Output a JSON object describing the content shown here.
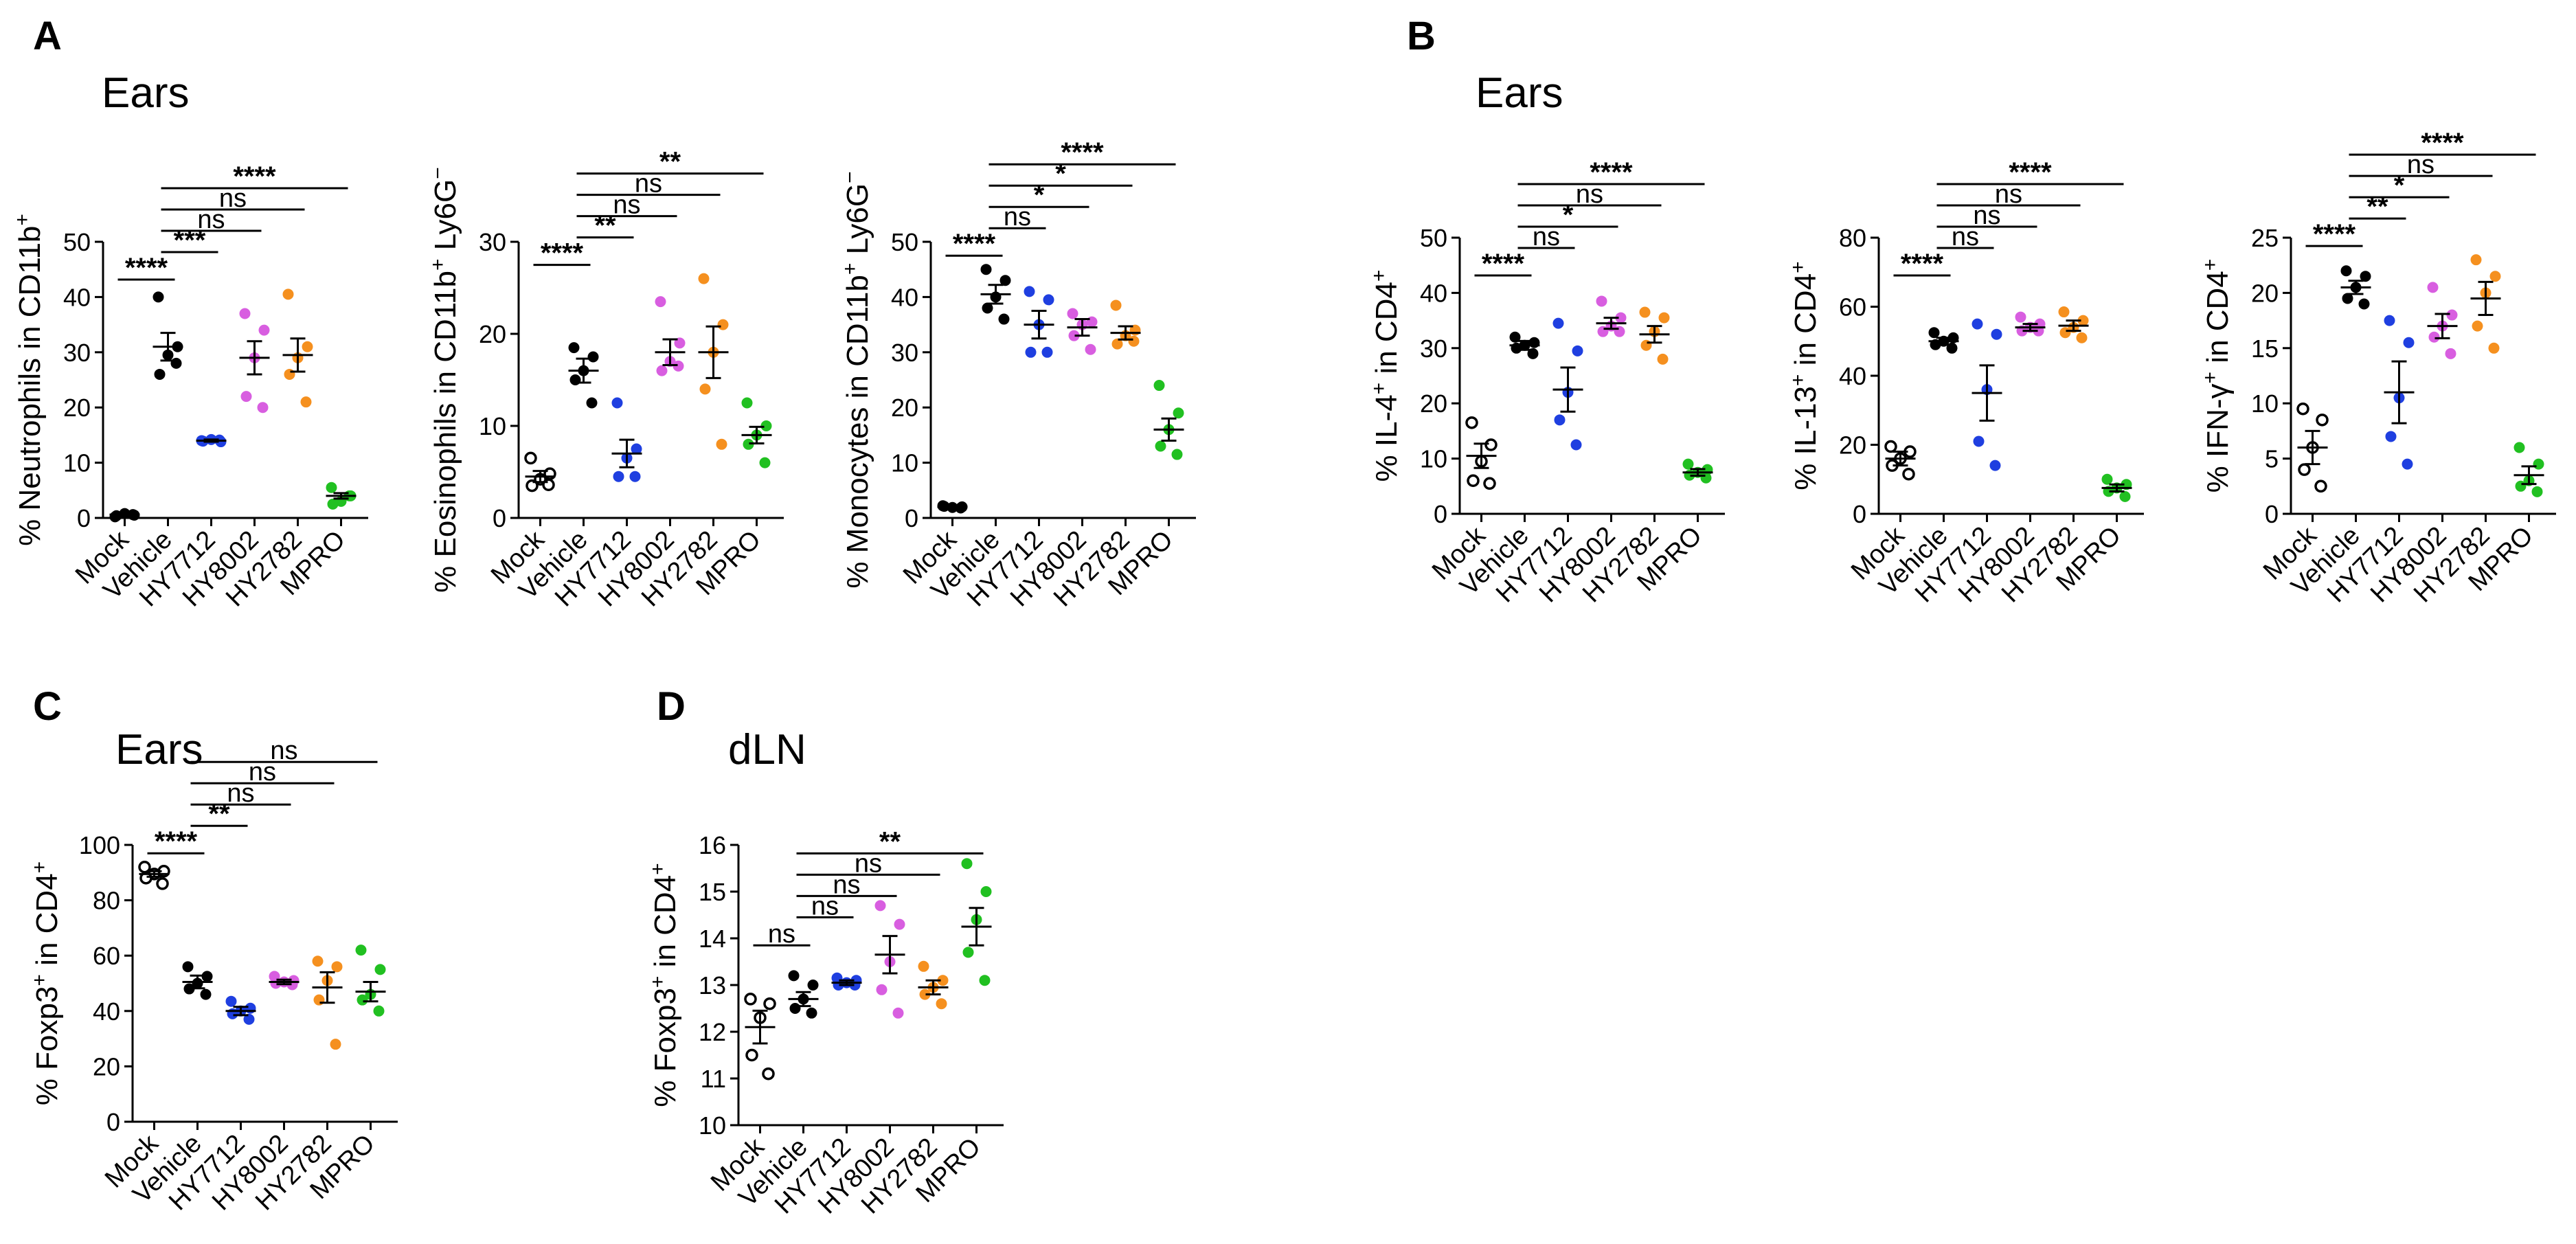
{
  "panels": [
    {
      "letter": "A",
      "title": "Ears"
    },
    {
      "letter": "B",
      "title": "Ears"
    },
    {
      "letter": "C",
      "title": "Ears"
    },
    {
      "letter": "D",
      "title": "dLN"
    }
  ],
  "groups": [
    "Mock",
    "Vehicle",
    "HY7712",
    "HY8002",
    "HY2782",
    "MPRO"
  ],
  "group_colors": {
    "Mock": "#000000",
    "Vehicle": "#000000",
    "HY7712": "#1f3fe0",
    "HY8002": "#d85ee0",
    "HY2782": "#f5901f",
    "MPRO": "#21c021"
  },
  "chart_data": [
    {
      "id": "neutrophils",
      "type": "scatter",
      "panel": "A",
      "ylabel_parts": [
        "% Neutrophils in CD11b",
        "+",
        ""
      ],
      "ylim": [
        0,
        50
      ],
      "yticks": [
        0,
        10,
        20,
        30,
        40,
        50
      ],
      "groups": [
        {
          "name": "Mock",
          "open": false,
          "mean": 0.6,
          "sem": 0.2,
          "points": [
            0.2,
            0.5,
            0.8,
            0.4,
            0.6
          ]
        },
        {
          "name": "Vehicle",
          "open": false,
          "mean": 31,
          "sem": 2.5,
          "points": [
            40,
            31,
            29.5,
            26,
            28
          ]
        },
        {
          "name": "HY7712",
          "open": false,
          "mean": 14,
          "sem": 0.2,
          "points": [
            14,
            13.8,
            14.2,
            13.9,
            14.1
          ]
        },
        {
          "name": "HY8002",
          "open": false,
          "mean": 29,
          "sem": 3,
          "points": [
            37,
            34,
            29,
            22,
            20
          ]
        },
        {
          "name": "HY2782",
          "open": false,
          "mean": 29.5,
          "sem": 3,
          "points": [
            40.5,
            31,
            29,
            26,
            21
          ]
        },
        {
          "name": "MPRO",
          "open": false,
          "mean": 4,
          "sem": 0.5,
          "points": [
            5.5,
            4,
            3,
            2.5,
            4
          ]
        }
      ],
      "comparisons": [
        {
          "from": "Mock",
          "to": "Vehicle",
          "label": "****"
        },
        {
          "from": "Vehicle",
          "to": "HY7712",
          "label": "***"
        },
        {
          "from": "Vehicle",
          "to": "HY8002",
          "label": "ns"
        },
        {
          "from": "Vehicle",
          "to": "HY2782",
          "label": "ns"
        },
        {
          "from": "Vehicle",
          "to": "MPRO",
          "label": "****"
        }
      ]
    },
    {
      "id": "eosinophils",
      "type": "scatter",
      "panel": "A",
      "ylabel_parts": [
        "% Eosinophils in CD11b",
        "+",
        " Ly6G",
        "−"
      ],
      "ylim": [
        0,
        30
      ],
      "yticks": [
        0,
        10,
        20,
        30
      ],
      "groups": [
        {
          "name": "Mock",
          "open": true,
          "mean": 4.5,
          "sem": 0.6,
          "points": [
            6.5,
            4.8,
            4.2,
            3.5,
            3.6
          ]
        },
        {
          "name": "Vehicle",
          "open": false,
          "mean": 16,
          "sem": 1.3,
          "points": [
            18.5,
            17.5,
            16,
            15,
            12.5
          ]
        },
        {
          "name": "HY7712",
          "open": false,
          "mean": 7,
          "sem": 1.5,
          "points": [
            12.5,
            7.5,
            6.5,
            4.5,
            4.5
          ]
        },
        {
          "name": "HY8002",
          "open": false,
          "mean": 18,
          "sem": 1.4,
          "points": [
            23.5,
            19,
            17,
            16,
            16.5
          ]
        },
        {
          "name": "HY2782",
          "open": false,
          "mean": 18,
          "sem": 2.8,
          "points": [
            26,
            21,
            18,
            14,
            8
          ]
        },
        {
          "name": "MPRO",
          "open": false,
          "mean": 9,
          "sem": 0.9,
          "points": [
            12.5,
            10,
            9,
            8,
            6
          ]
        }
      ],
      "comparisons": [
        {
          "from": "Mock",
          "to": "Vehicle",
          "label": "****"
        },
        {
          "from": "Vehicle",
          "to": "HY7712",
          "label": "**"
        },
        {
          "from": "Vehicle",
          "to": "HY8002",
          "label": "ns"
        },
        {
          "from": "Vehicle",
          "to": "HY2782",
          "label": "ns"
        },
        {
          "from": "Vehicle",
          "to": "MPRO",
          "label": "**"
        }
      ]
    },
    {
      "id": "monocytes",
      "type": "scatter",
      "panel": "A",
      "ylabel_parts": [
        "% Monocytes in CD11b",
        "+",
        " Ly6G",
        "−"
      ],
      "ylim": [
        0,
        50
      ],
      "yticks": [
        0,
        10,
        20,
        30,
        40,
        50
      ],
      "groups": [
        {
          "name": "Mock",
          "open": false,
          "mean": 2,
          "sem": 0.2,
          "points": [
            2.2,
            2,
            1.9,
            2.1,
            1.8
          ]
        },
        {
          "name": "Vehicle",
          "open": false,
          "mean": 40.5,
          "sem": 1.7,
          "points": [
            45,
            43,
            40,
            38,
            36
          ]
        },
        {
          "name": "HY7712",
          "open": false,
          "mean": 35,
          "sem": 2.5,
          "points": [
            41,
            39.5,
            35,
            30,
            30
          ]
        },
        {
          "name": "HY8002",
          "open": false,
          "mean": 34.5,
          "sem": 1.5,
          "points": [
            37,
            35.5,
            35,
            33,
            30.5
          ]
        },
        {
          "name": "HY2782",
          "open": false,
          "mean": 33.5,
          "sem": 1.2,
          "points": [
            38.5,
            34,
            33,
            31.5,
            32
          ]
        },
        {
          "name": "MPRO",
          "open": false,
          "mean": 16,
          "sem": 2,
          "points": [
            24,
            19,
            16,
            13,
            11.5
          ]
        }
      ],
      "comparisons": [
        {
          "from": "Mock",
          "to": "Vehicle",
          "label": "****"
        },
        {
          "from": "Vehicle",
          "to": "HY7712",
          "label": "ns"
        },
        {
          "from": "Vehicle",
          "to": "HY8002",
          "label": "*"
        },
        {
          "from": "Vehicle",
          "to": "HY2782",
          "label": "*"
        },
        {
          "from": "Vehicle",
          "to": "MPRO",
          "label": "****"
        }
      ]
    },
    {
      "id": "il4",
      "type": "scatter",
      "panel": "B",
      "ylabel_parts": [
        "% IL-4",
        "+",
        " in CD4",
        "+"
      ],
      "ylim": [
        0,
        50
      ],
      "yticks": [
        0,
        10,
        20,
        30,
        40,
        50
      ],
      "groups": [
        {
          "name": "Mock",
          "open": true,
          "mean": 10.5,
          "sem": 2.2,
          "points": [
            16.5,
            12.5,
            9.5,
            6,
            5.5
          ]
        },
        {
          "name": "Vehicle",
          "open": false,
          "mean": 30.5,
          "sem": 0.8,
          "points": [
            32,
            31,
            30.5,
            30,
            29
          ]
        },
        {
          "name": "HY7712",
          "open": false,
          "mean": 22.5,
          "sem": 4,
          "points": [
            34.5,
            29.5,
            22,
            17,
            12.5
          ]
        },
        {
          "name": "HY8002",
          "open": false,
          "mean": 34.5,
          "sem": 1,
          "points": [
            38.5,
            35.5,
            34,
            33,
            33
          ]
        },
        {
          "name": "HY2782",
          "open": false,
          "mean": 32.5,
          "sem": 1.5,
          "points": [
            36.5,
            35.5,
            33,
            30.5,
            28
          ]
        },
        {
          "name": "MPRO",
          "open": false,
          "mean": 7.5,
          "sem": 0.6,
          "points": [
            9,
            8,
            7.5,
            7,
            6.5
          ]
        }
      ],
      "comparisons": [
        {
          "from": "Mock",
          "to": "Vehicle",
          "label": "****"
        },
        {
          "from": "Vehicle",
          "to": "HY7712",
          "label": "ns"
        },
        {
          "from": "Vehicle",
          "to": "HY8002",
          "label": "*"
        },
        {
          "from": "Vehicle",
          "to": "HY2782",
          "label": "ns"
        },
        {
          "from": "Vehicle",
          "to": "MPRO",
          "label": "****"
        }
      ]
    },
    {
      "id": "il13",
      "type": "scatter",
      "panel": "B",
      "ylabel_parts": [
        "% IL-13",
        "+",
        " in CD4",
        "+"
      ],
      "ylim": [
        0,
        80
      ],
      "yticks": [
        0,
        20,
        40,
        60,
        80
      ],
      "groups": [
        {
          "name": "Mock",
          "open": true,
          "mean": 16,
          "sem": 2,
          "points": [
            19.5,
            18,
            16,
            14,
            11.5
          ]
        },
        {
          "name": "Vehicle",
          "open": false,
          "mean": 50,
          "sem": 1,
          "points": [
            52.5,
            51,
            50,
            49,
            48
          ]
        },
        {
          "name": "HY7712",
          "open": false,
          "mean": 35,
          "sem": 8,
          "points": [
            55,
            52,
            36,
            21,
            14
          ]
        },
        {
          "name": "HY8002",
          "open": false,
          "mean": 54,
          "sem": 1,
          "points": [
            57,
            55,
            54,
            53,
            53
          ]
        },
        {
          "name": "HY2782",
          "open": false,
          "mean": 54.5,
          "sem": 1.5,
          "points": [
            58.5,
            56,
            54,
            52.5,
            51
          ]
        },
        {
          "name": "MPRO",
          "open": false,
          "mean": 7.5,
          "sem": 1,
          "points": [
            10,
            8.5,
            7.5,
            6.5,
            5
          ]
        }
      ],
      "comparisons": [
        {
          "from": "Mock",
          "to": "Vehicle",
          "label": "****"
        },
        {
          "from": "Vehicle",
          "to": "HY7712",
          "label": "ns"
        },
        {
          "from": "Vehicle",
          "to": "HY8002",
          "label": "ns"
        },
        {
          "from": "Vehicle",
          "to": "HY2782",
          "label": "ns"
        },
        {
          "from": "Vehicle",
          "to": "MPRO",
          "label": "****"
        }
      ]
    },
    {
      "id": "ifng",
      "type": "scatter",
      "panel": "B",
      "ylabel_parts": [
        "% IFN-γ",
        "+",
        " in CD4",
        "+"
      ],
      "ylim": [
        0,
        25
      ],
      "yticks": [
        0,
        5,
        10,
        15,
        20,
        25
      ],
      "groups": [
        {
          "name": "Mock",
          "open": true,
          "mean": 6,
          "sem": 1.5,
          "points": [
            9.5,
            8.5,
            6,
            4,
            2.5
          ]
        },
        {
          "name": "Vehicle",
          "open": false,
          "mean": 20.5,
          "sem": 0.6,
          "points": [
            22,
            21.5,
            20.5,
            19.5,
            19
          ]
        },
        {
          "name": "HY7712",
          "open": false,
          "mean": 11,
          "sem": 2.8,
          "points": [
            17.5,
            15.5,
            10.5,
            7,
            4.5
          ]
        },
        {
          "name": "HY8002",
          "open": false,
          "mean": 17,
          "sem": 1.1,
          "points": [
            20.5,
            18,
            17,
            16,
            14.5
          ]
        },
        {
          "name": "HY2782",
          "open": false,
          "mean": 19.5,
          "sem": 1.5,
          "points": [
            23,
            21.5,
            20,
            17,
            15
          ]
        },
        {
          "name": "MPRO",
          "open": false,
          "mean": 3.5,
          "sem": 0.8,
          "points": [
            6,
            4.5,
            3,
            2.5,
            2
          ]
        }
      ],
      "comparisons": [
        {
          "from": "Mock",
          "to": "Vehicle",
          "label": "****"
        },
        {
          "from": "Vehicle",
          "to": "HY7712",
          "label": "**"
        },
        {
          "from": "Vehicle",
          "to": "HY8002",
          "label": "*"
        },
        {
          "from": "Vehicle",
          "to": "HY2782",
          "label": "ns"
        },
        {
          "from": "Vehicle",
          "to": "MPRO",
          "label": "****"
        }
      ]
    },
    {
      "id": "foxp3-ears",
      "type": "scatter",
      "panel": "C",
      "ylabel_parts": [
        "% Foxp3",
        "+",
        " in CD4",
        "+"
      ],
      "ylim": [
        0,
        100
      ],
      "yticks": [
        0,
        20,
        40,
        60,
        80,
        100
      ],
      "groups": [
        {
          "name": "Mock",
          "open": true,
          "mean": 89.5,
          "sem": 1,
          "points": [
            92,
            90.5,
            89.5,
            88,
            86
          ]
        },
        {
          "name": "Vehicle",
          "open": false,
          "mean": 50.5,
          "sem": 2.3,
          "points": [
            56,
            52.5,
            50,
            48,
            46
          ]
        },
        {
          "name": "HY7712",
          "open": false,
          "mean": 40,
          "sem": 1.5,
          "points": [
            43.5,
            41,
            40,
            39,
            37
          ]
        },
        {
          "name": "HY8002",
          "open": false,
          "mean": 50.5,
          "sem": 0.8,
          "points": [
            52.5,
            51,
            50.5,
            50,
            49.5
          ]
        },
        {
          "name": "HY2782",
          "open": false,
          "mean": 48.5,
          "sem": 5.5,
          "points": [
            58,
            56,
            51,
            44,
            28
          ]
        },
        {
          "name": "MPRO",
          "open": false,
          "mean": 47,
          "sem": 3.5,
          "points": [
            62,
            55,
            46,
            44,
            40
          ]
        }
      ],
      "comparisons": [
        {
          "from": "Mock",
          "to": "Vehicle",
          "label": "****"
        },
        {
          "from": "Vehicle",
          "to": "HY7712",
          "label": "**"
        },
        {
          "from": "Vehicle",
          "to": "HY8002",
          "label": "ns"
        },
        {
          "from": "Vehicle",
          "to": "HY2782",
          "label": "ns"
        },
        {
          "from": "Vehicle",
          "to": "MPRO",
          "label": "ns"
        }
      ]
    },
    {
      "id": "foxp3-dln",
      "type": "scatter",
      "panel": "D",
      "ylabel_parts": [
        "% Foxp3",
        "+",
        " in CD4",
        "+"
      ],
      "ylim": [
        10,
        16
      ],
      "yticks": [
        10,
        11,
        12,
        13,
        14,
        15,
        16
      ],
      "groups": [
        {
          "name": "Mock",
          "open": true,
          "mean": 12.1,
          "sem": 0.35,
          "points": [
            12.7,
            12.6,
            12.3,
            11.5,
            11.1
          ]
        },
        {
          "name": "Vehicle",
          "open": false,
          "mean": 12.7,
          "sem": 0.15,
          "points": [
            13.2,
            13,
            12.7,
            12.5,
            12.4
          ]
        },
        {
          "name": "HY7712",
          "open": false,
          "mean": 13.05,
          "sem": 0.05,
          "points": [
            13.15,
            13.1,
            13.05,
            13,
            13
          ]
        },
        {
          "name": "HY8002",
          "open": false,
          "mean": 13.65,
          "sem": 0.4,
          "points": [
            14.7,
            14.3,
            13.5,
            12.9,
            12.4
          ]
        },
        {
          "name": "HY2782",
          "open": false,
          "mean": 12.95,
          "sem": 0.15,
          "points": [
            13.4,
            13.1,
            12.95,
            12.8,
            12.6
          ]
        },
        {
          "name": "MPRO",
          "open": false,
          "mean": 14.25,
          "sem": 0.4,
          "points": [
            15.6,
            15,
            14.4,
            13.7,
            13.1
          ]
        }
      ],
      "comparisons": [
        {
          "from": "Mock",
          "to": "Vehicle",
          "label": "ns"
        },
        {
          "from": "Vehicle",
          "to": "HY7712",
          "label": "ns"
        },
        {
          "from": "Vehicle",
          "to": "HY8002",
          "label": "ns"
        },
        {
          "from": "Vehicle",
          "to": "HY2782",
          "label": "ns"
        },
        {
          "from": "Vehicle",
          "to": "MPRO",
          "label": "**"
        }
      ]
    }
  ]
}
